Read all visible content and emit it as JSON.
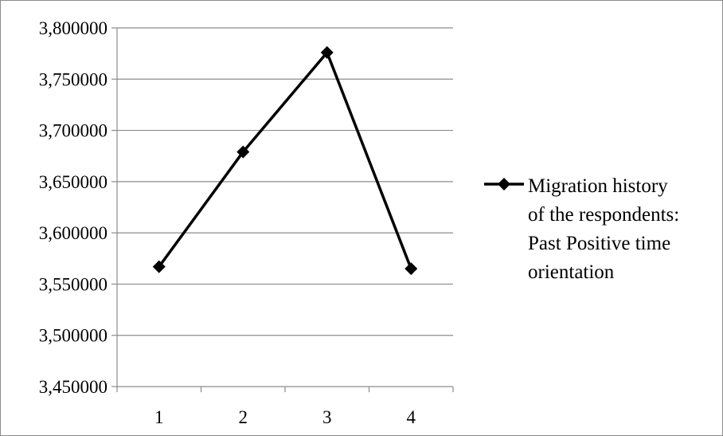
{
  "chart_data": {
    "type": "line",
    "categories": [
      "1",
      "2",
      "3",
      "4"
    ],
    "series": [
      {
        "name": "Migration history of the respondents: Past Positive time orientation",
        "name_lines": [
          "Migration history",
          "of the respondents:",
          "Past Positive time",
          "orientation"
        ],
        "values": [
          3.567,
          3.679,
          3.776,
          3.565
        ],
        "color": "#000000",
        "marker": "diamond"
      }
    ],
    "ylim": [
      3.45,
      3.8
    ],
    "yticks": [
      3.8,
      3.75,
      3.7,
      3.65,
      3.6,
      3.55,
      3.5,
      3.45
    ],
    "ytick_labels": [
      "3,800000",
      "3,750000",
      "3,700000",
      "3,650000",
      "3,600000",
      "3,550000",
      "3,500000",
      "3,450000"
    ],
    "xlabel": "",
    "ylabel": "",
    "grid": true,
    "legend_position": "right",
    "colors": {
      "gridline": "#8c8c8c",
      "axis": "#8c8c8c",
      "series": "#000000"
    }
  }
}
